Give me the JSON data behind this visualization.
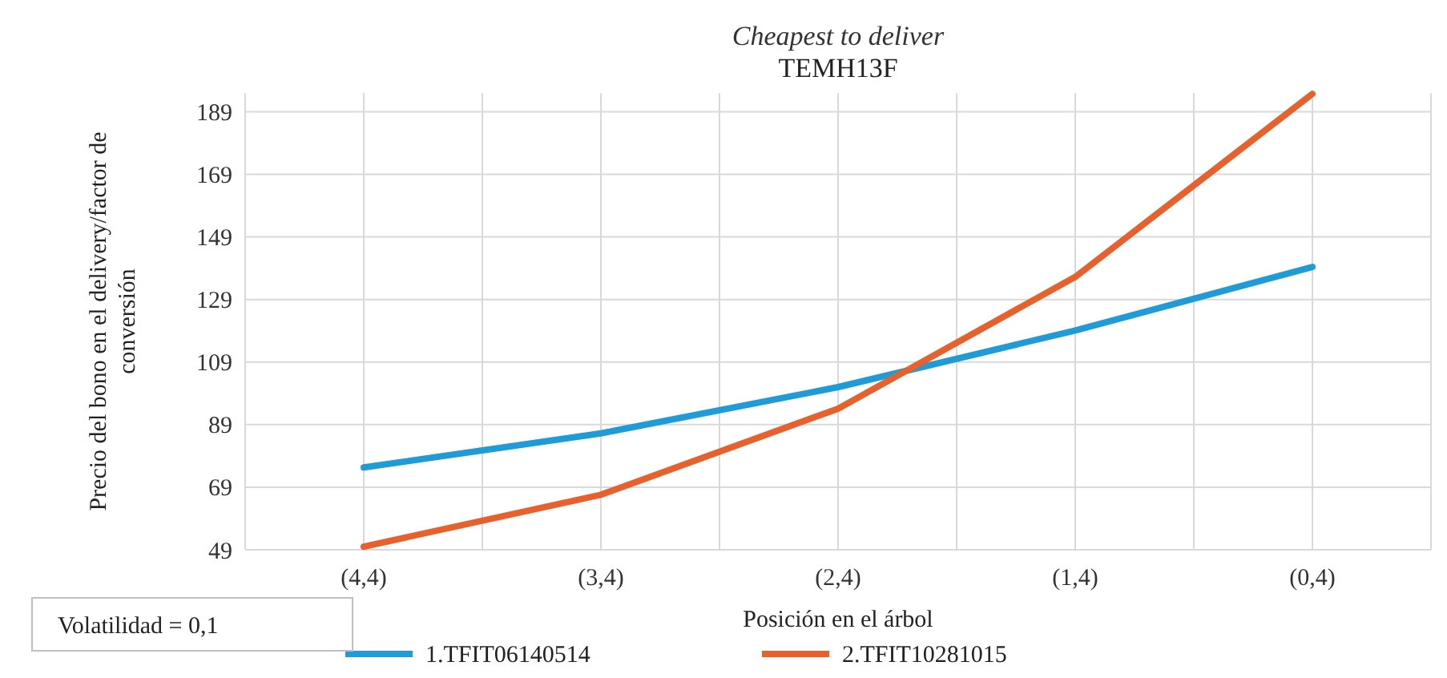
{
  "chart_data": {
    "type": "line",
    "title": "Cheapest to deliver",
    "subtitle": "TEMH13F",
    "xlabel": "Posición en el árbol",
    "ylabel": "Precio del bono en el delivery/factor de conversión",
    "categories": [
      "(4,4)",
      "(3,4)",
      "(2,4)",
      "(1,4)",
      "(0,4)"
    ],
    "series": [
      {
        "name": "1.TFIT06140514",
        "color": "#1f9bd7",
        "values": [
          75.3,
          86.2,
          101,
          119.1,
          139.4
        ]
      },
      {
        "name": "2.TFIT10281015",
        "color": "#e8602c",
        "values": [
          50,
          66.6,
          94.1,
          136.2,
          194.7
        ]
      }
    ],
    "ylim": [
      49,
      195
    ],
    "yticks": [
      49,
      69,
      89,
      109,
      129,
      149,
      169,
      189
    ],
    "grid": true,
    "legend": "bottom",
    "marker": "none",
    "line_style": "solid",
    "annotations": [
      "Volatilidad = 0,1"
    ]
  }
}
